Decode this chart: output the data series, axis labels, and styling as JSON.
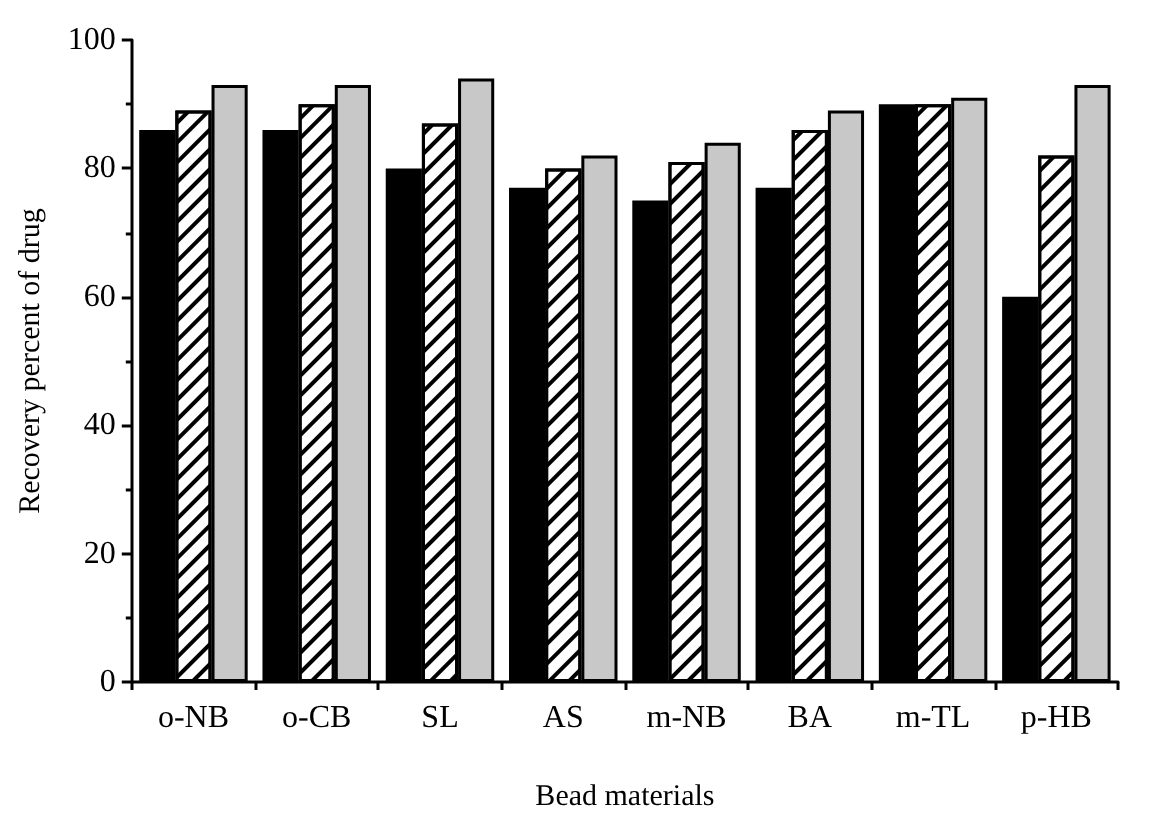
{
  "chart_data": {
    "type": "bar",
    "xlabel": "Bead materials",
    "ylabel": "Recovery percent of drug",
    "categories": [
      "o-NB",
      "o-CB",
      "SL",
      "AS",
      "m-NB",
      "BA",
      "m-TL",
      "p-HB"
    ],
    "series": [
      {
        "color": "#000000",
        "values": [
          86,
          86,
          80,
          77,
          75,
          77,
          90,
          60
        ]
      },
      {
        "color": "#ffffff",
        "values": [
          89,
          90,
          87,
          80,
          81,
          86,
          90,
          82
        ]
      },
      {
        "color": "#c8c8c8",
        "values": [
          93,
          93,
          94,
          82,
          84,
          89,
          91,
          93
        ]
      }
    ],
    "ylim": [
      0,
      100
    ],
    "yticks": [
      0,
      20,
      40,
      60,
      80,
      100
    ],
    "grid": false
  }
}
